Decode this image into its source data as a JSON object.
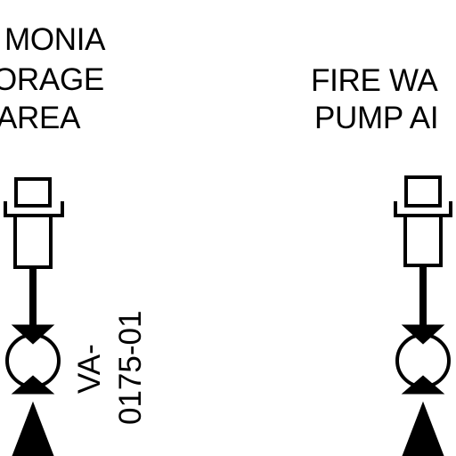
{
  "labels": {
    "left_area": [
      "MONIA",
      "ORAGE",
      "AREA"
    ],
    "right_area": [
      "FIRE WA",
      "PUMP AI"
    ]
  },
  "valve_tag": {
    "prefix": "VA-",
    "number": "0175-01"
  },
  "colors": {
    "ink": "#000000",
    "paper": "#ffffff"
  }
}
